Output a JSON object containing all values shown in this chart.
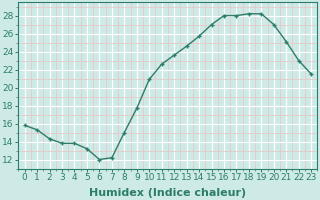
{
  "x": [
    0,
    1,
    2,
    3,
    4,
    5,
    6,
    7,
    8,
    9,
    10,
    11,
    12,
    13,
    14,
    15,
    16,
    17,
    18,
    19,
    20,
    21,
    22,
    23
  ],
  "y": [
    15.8,
    15.3,
    14.3,
    13.8,
    13.8,
    13.2,
    12.0,
    12.2,
    15.0,
    17.7,
    20.9,
    22.6,
    23.6,
    24.6,
    25.7,
    27.0,
    28.0,
    28.0,
    28.2,
    28.2,
    27.0,
    25.1,
    23.0,
    21.5
  ],
  "xlabel": "Humidex (Indice chaleur)",
  "ylim": [
    11,
    29.5
  ],
  "xlim": [
    -0.5,
    23.5
  ],
  "yticks": [
    12,
    14,
    16,
    18,
    20,
    22,
    24,
    26,
    28
  ],
  "xticks": [
    0,
    1,
    2,
    3,
    4,
    5,
    6,
    7,
    8,
    9,
    10,
    11,
    12,
    13,
    14,
    15,
    16,
    17,
    18,
    19,
    20,
    21,
    22,
    23
  ],
  "line_color": "#2d7d6b",
  "bg_color": "#ceeae7",
  "grid_major_color": "#ffffff",
  "grid_minor_color": "#e8c8c8",
  "tick_label_fontsize": 6.5,
  "xlabel_fontsize": 8,
  "xlabel_fontweight": "bold",
  "xlabel_color": "#2d7d6b"
}
